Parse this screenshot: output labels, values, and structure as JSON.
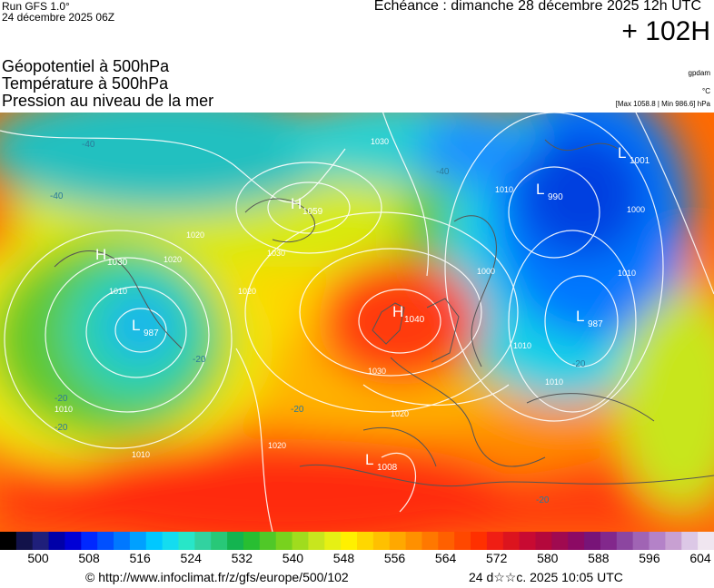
{
  "header": {
    "run_title": "Run GFS 1.0°",
    "run_date": "24 décembre 2025 06Z",
    "echeance": "Echéance : dimanche 28 décembre 2025 12h UTC",
    "lead": "+ 102H"
  },
  "fields": {
    "geopotential": "Géopotentiel à 500hPa",
    "temperature": "Température à 500hPa",
    "pressure": "Pression au niveau de la mer"
  },
  "units": {
    "geopotential": "gpdam",
    "temperature": "°C",
    "pressure_range": "[Max 1058.8 | Min 986.6] hPa"
  },
  "pressure_centers": [
    {
      "type": "H",
      "value": "1030"
    },
    {
      "type": "H",
      "value": "1059"
    },
    {
      "type": "H",
      "value": "1040"
    },
    {
      "type": "L",
      "value": "987"
    },
    {
      "type": "L",
      "value": "990"
    },
    {
      "type": "L",
      "value": "1001"
    },
    {
      "type": "L",
      "value": "987"
    },
    {
      "type": "L",
      "value": "1008"
    }
  ],
  "isobar_labels": [
    "1030",
    "1020",
    "1020",
    "1010",
    "1010",
    "1020",
    "1030",
    "1020",
    "1030",
    "1010",
    "1010",
    "1000",
    "1010",
    "1010",
    "1010",
    "1020",
    "1000"
  ],
  "temperature_labels": [
    "-40",
    "-40",
    "-40",
    "-20",
    "-20",
    "-20",
    "-20",
    "-20",
    "-20"
  ],
  "colorbar": {
    "ticks": [
      "500",
      "508",
      "516",
      "524",
      "532",
      "540",
      "548",
      "556",
      "564",
      "572",
      "580",
      "588",
      "596",
      "604"
    ],
    "colors": [
      "#000000",
      "#12124a",
      "#1f1f7a",
      "#0000a8",
      "#0000d6",
      "#0028ff",
      "#0050ff",
      "#0078ff",
      "#00a0ff",
      "#00c8ff",
      "#14dcf0",
      "#28e6c8",
      "#32d2a0",
      "#28c878",
      "#14b450",
      "#28be32",
      "#50c828",
      "#78d21e",
      "#a0dc1e",
      "#c8e61e",
      "#e6f014",
      "#fff000",
      "#ffd700",
      "#ffc000",
      "#ffa800",
      "#ff9000",
      "#ff7800",
      "#ff6000",
      "#ff4800",
      "#ff3000",
      "#f01e14",
      "#dc141e",
      "#c80a32",
      "#b4083c",
      "#a00a50",
      "#8c0a64",
      "#781478",
      "#82288c",
      "#8c46a0",
      "#a064b4",
      "#b482c8",
      "#c8a0d2",
      "#dcc8e6",
      "#f0e6f0"
    ]
  },
  "footer": {
    "source": "© http://www.infoclimat.fr/z/gfs/europe/500/102",
    "generated": "24 d☆☆c. 2025 10:05 UTC"
  }
}
